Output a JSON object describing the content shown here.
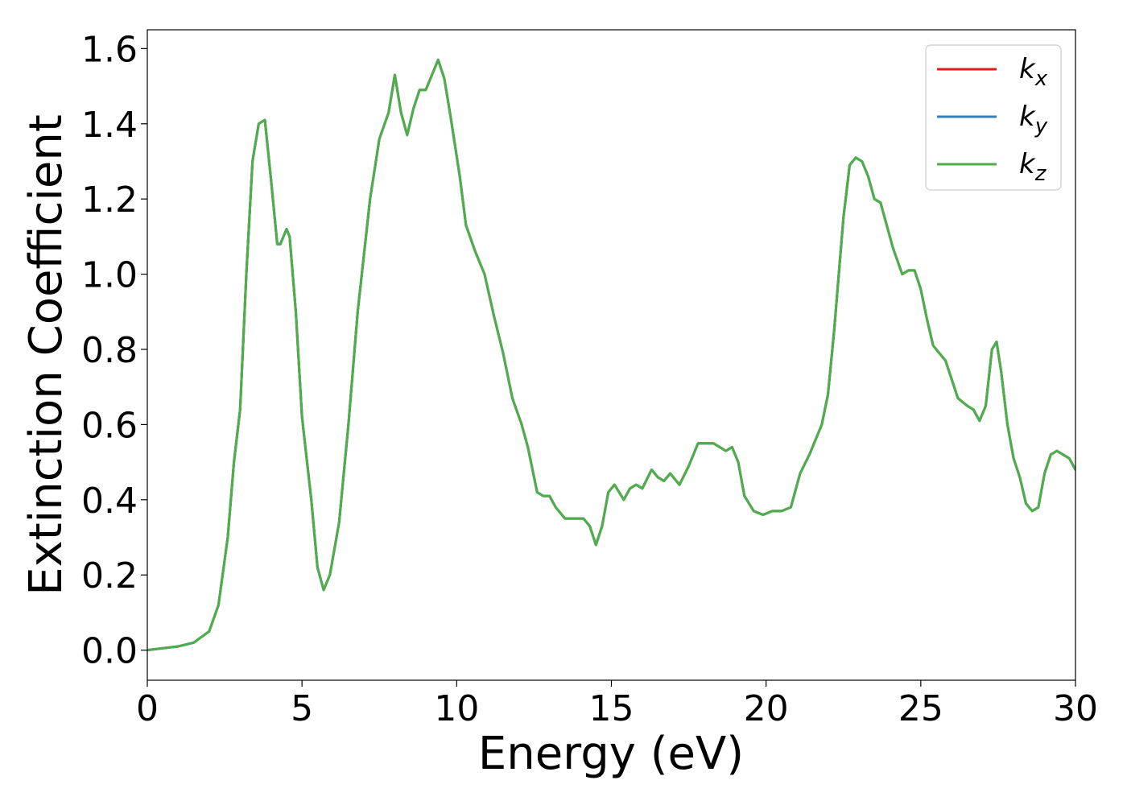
{
  "chart_data": {
    "type": "line",
    "xlabel": "Energy (eV)",
    "ylabel": "Extinction Coefficient",
    "xlim": [
      0,
      30
    ],
    "ylim": [
      -0.08,
      1.65
    ],
    "xticks": [
      "0",
      "5",
      "10",
      "15",
      "20",
      "25",
      "30"
    ],
    "yticks": [
      "0.0",
      "0.2",
      "0.4",
      "0.6",
      "0.8",
      "1.0",
      "1.2",
      "1.4",
      "1.6"
    ],
    "legend_position": "top-right",
    "grid": false,
    "series": [
      {
        "name": "k",
        "name_subscript": "x",
        "color": "#e41a1c",
        "points": [
          [
            0,
            0.0
          ],
          [
            0.5,
            0.005
          ],
          [
            1,
            0.01
          ],
          [
            1.5,
            0.02
          ],
          [
            2,
            0.05
          ],
          [
            2.3,
            0.12
          ],
          [
            2.6,
            0.3
          ],
          [
            2.8,
            0.5
          ],
          [
            3.0,
            0.64
          ],
          [
            3.2,
            1.0
          ],
          [
            3.4,
            1.3
          ],
          [
            3.6,
            1.4
          ],
          [
            3.8,
            1.41
          ],
          [
            4.0,
            1.25
          ],
          [
            4.2,
            1.08
          ],
          [
            4.3,
            1.08
          ],
          [
            4.5,
            1.12
          ],
          [
            4.6,
            1.1
          ],
          [
            4.8,
            0.9
          ],
          [
            5.0,
            0.62
          ],
          [
            5.3,
            0.4
          ],
          [
            5.5,
            0.22
          ],
          [
            5.7,
            0.16
          ],
          [
            5.9,
            0.2
          ],
          [
            6.2,
            0.34
          ],
          [
            6.5,
            0.6
          ],
          [
            6.8,
            0.9
          ],
          [
            7.2,
            1.2
          ],
          [
            7.5,
            1.36
          ],
          [
            7.8,
            1.43
          ],
          [
            8.0,
            1.53
          ],
          [
            8.2,
            1.43
          ],
          [
            8.4,
            1.37
          ],
          [
            8.6,
            1.44
          ],
          [
            8.8,
            1.49
          ],
          [
            9.0,
            1.49
          ],
          [
            9.2,
            1.53
          ],
          [
            9.4,
            1.57
          ],
          [
            9.6,
            1.52
          ],
          [
            9.8,
            1.42
          ],
          [
            10.1,
            1.26
          ],
          [
            10.3,
            1.13
          ],
          [
            10.6,
            1.06
          ],
          [
            10.9,
            1.0
          ],
          [
            11.2,
            0.89
          ],
          [
            11.5,
            0.79
          ],
          [
            11.8,
            0.67
          ],
          [
            12.1,
            0.6
          ],
          [
            12.3,
            0.54
          ],
          [
            12.6,
            0.42
          ],
          [
            12.8,
            0.41
          ],
          [
            13.0,
            0.41
          ],
          [
            13.2,
            0.38
          ],
          [
            13.5,
            0.35
          ],
          [
            13.8,
            0.35
          ],
          [
            14.1,
            0.35
          ],
          [
            14.3,
            0.33
          ],
          [
            14.5,
            0.28
          ],
          [
            14.7,
            0.33
          ],
          [
            14.9,
            0.42
          ],
          [
            15.1,
            0.44
          ],
          [
            15.4,
            0.4
          ],
          [
            15.6,
            0.43
          ],
          [
            15.8,
            0.44
          ],
          [
            16.0,
            0.43
          ],
          [
            16.3,
            0.48
          ],
          [
            16.5,
            0.46
          ],
          [
            16.7,
            0.45
          ],
          [
            16.9,
            0.47
          ],
          [
            17.2,
            0.44
          ],
          [
            17.5,
            0.49
          ],
          [
            17.8,
            0.55
          ],
          [
            18.1,
            0.55
          ],
          [
            18.3,
            0.55
          ],
          [
            18.5,
            0.54
          ],
          [
            18.7,
            0.53
          ],
          [
            18.9,
            0.54
          ],
          [
            19.1,
            0.5
          ],
          [
            19.3,
            0.41
          ],
          [
            19.6,
            0.37
          ],
          [
            19.9,
            0.36
          ],
          [
            20.2,
            0.37
          ],
          [
            20.5,
            0.37
          ],
          [
            20.8,
            0.38
          ],
          [
            21.1,
            0.47
          ],
          [
            21.4,
            0.52
          ],
          [
            21.8,
            0.6
          ],
          [
            22.0,
            0.68
          ],
          [
            22.2,
            0.85
          ],
          [
            22.5,
            1.15
          ],
          [
            22.7,
            1.29
          ],
          [
            22.9,
            1.31
          ],
          [
            23.1,
            1.3
          ],
          [
            23.3,
            1.26
          ],
          [
            23.5,
            1.2
          ],
          [
            23.7,
            1.19
          ],
          [
            23.9,
            1.13
          ],
          [
            24.1,
            1.07
          ],
          [
            24.4,
            1.0
          ],
          [
            24.6,
            1.01
          ],
          [
            24.8,
            1.01
          ],
          [
            25.0,
            0.96
          ],
          [
            25.2,
            0.88
          ],
          [
            25.4,
            0.81
          ],
          [
            25.6,
            0.79
          ],
          [
            25.8,
            0.77
          ],
          [
            26.0,
            0.72
          ],
          [
            26.2,
            0.67
          ],
          [
            26.5,
            0.65
          ],
          [
            26.7,
            0.64
          ],
          [
            26.9,
            0.61
          ],
          [
            27.1,
            0.65
          ],
          [
            27.3,
            0.8
          ],
          [
            27.45,
            0.82
          ],
          [
            27.6,
            0.74
          ],
          [
            27.8,
            0.6
          ],
          [
            28.0,
            0.51
          ],
          [
            28.2,
            0.46
          ],
          [
            28.4,
            0.39
          ],
          [
            28.6,
            0.37
          ],
          [
            28.8,
            0.38
          ],
          [
            29.0,
            0.47
          ],
          [
            29.2,
            0.52
          ],
          [
            29.4,
            0.53
          ],
          [
            29.6,
            0.52
          ],
          [
            29.8,
            0.51
          ],
          [
            30.0,
            0.48
          ]
        ]
      },
      {
        "name": "k",
        "name_subscript": "y",
        "color": "#377eb8",
        "same_as": 0
      },
      {
        "name": "k",
        "name_subscript": "z",
        "color": "#4daf4a",
        "same_as": 0
      }
    ]
  }
}
